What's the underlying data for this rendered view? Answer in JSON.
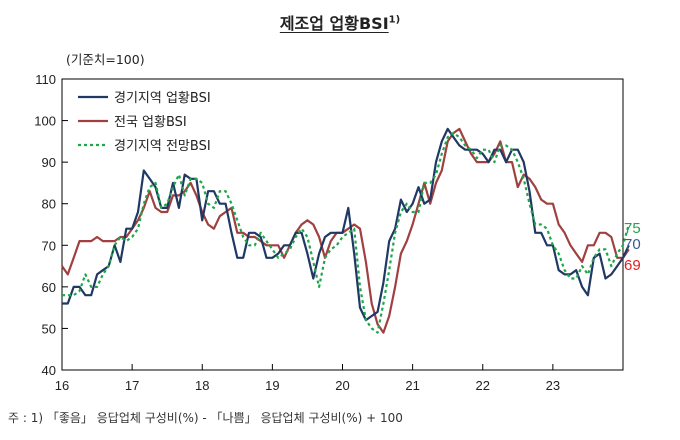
{
  "chart_data": {
    "type": "line",
    "title": "제조업 업황BSI",
    "title_sup": "1)",
    "unit_label": "(기준치=100)",
    "note": "주 : 1) 「좋음」 응답업체 구성비(%) - 「나쁨」 응답업체 구성비(%) + 100",
    "ylim": [
      40,
      110
    ],
    "yticks": [
      "40",
      "50",
      "60",
      "70",
      "80",
      "90",
      "100",
      "110"
    ],
    "xlim": [
      16,
      24
    ],
    "xticks": [
      "16",
      "17",
      "18",
      "19",
      "20",
      "21",
      "22",
      "23"
    ],
    "x_start": 16,
    "x_step": 0.0833333,
    "series": [
      {
        "name": "경기지역 업황BSI",
        "color": "#1f3864",
        "dash": "",
        "end_label": "70",
        "values": [
          56,
          56,
          60,
          60,
          58,
          58,
          63,
          64,
          65,
          70,
          66,
          74,
          74,
          78,
          88,
          86,
          84,
          79,
          79,
          85,
          79,
          87,
          86,
          86,
          76,
          83,
          83,
          80,
          80,
          73,
          67,
          67,
          73,
          73,
          72,
          67,
          67,
          68,
          70,
          70,
          73,
          73,
          68,
          62,
          68,
          72,
          73,
          73,
          73,
          79,
          68,
          55,
          52,
          53,
          54,
          61,
          71,
          74,
          81,
          78,
          80,
          84,
          80,
          81,
          90,
          95,
          98,
          96,
          94,
          93,
          93,
          93,
          92,
          90,
          93,
          93,
          90,
          93,
          93,
          90,
          83,
          73,
          73,
          70,
          70,
          64,
          63,
          63,
          64,
          60,
          58,
          67,
          68,
          62,
          63,
          65,
          67,
          70
        ]
      },
      {
        "name": "전국 업황BSI",
        "color": "#a04040",
        "dash": "",
        "end_label": "69",
        "values": [
          65,
          63,
          67,
          71,
          71,
          71,
          72,
          71,
          71,
          71,
          72,
          72,
          74,
          76,
          79,
          83,
          79,
          78,
          78,
          82,
          82,
          83,
          85,
          82,
          78,
          75,
          74,
          77,
          78,
          79,
          73,
          73,
          72,
          72,
          71,
          70,
          70,
          70,
          67,
          70,
          73,
          75,
          76,
          75,
          72,
          67,
          71,
          73,
          73,
          74,
          75,
          74,
          66,
          56,
          51,
          49,
          53,
          60,
          68,
          71,
          75,
          80,
          85,
          80,
          85,
          88,
          95,
          97,
          98,
          95,
          92,
          90,
          90,
          90,
          92,
          95,
          90,
          90,
          84,
          87,
          86,
          84,
          81,
          80,
          80,
          75,
          73,
          70,
          68,
          66,
          70,
          70,
          73,
          73,
          72,
          67,
          67,
          69
        ]
      },
      {
        "name": "경기지역 전망BSI",
        "color": "#1fa64a",
        "dash": "3,3",
        "end_label": "75",
        "values": [
          58,
          58,
          58,
          59,
          63,
          60,
          60,
          63,
          65,
          70,
          72,
          71,
          72,
          74,
          80,
          84,
          85,
          79,
          80,
          84,
          87,
          82,
          86,
          86,
          85,
          80,
          79,
          83,
          83,
          80,
          76,
          72,
          70,
          70,
          73,
          71,
          69,
          67,
          68,
          69,
          72,
          74,
          72,
          66,
          60,
          67,
          69,
          70,
          72,
          73,
          74,
          60,
          52,
          50,
          49,
          56,
          64,
          73,
          78,
          80,
          78,
          78,
          85,
          85,
          87,
          92,
          96,
          97,
          96,
          94,
          93,
          91,
          93,
          93,
          90,
          94,
          94,
          93,
          90,
          86,
          80,
          75,
          75,
          74,
          70,
          68,
          64,
          62,
          62,
          65,
          63,
          67,
          69,
          69,
          65,
          68,
          70,
          75
        ]
      }
    ]
  }
}
